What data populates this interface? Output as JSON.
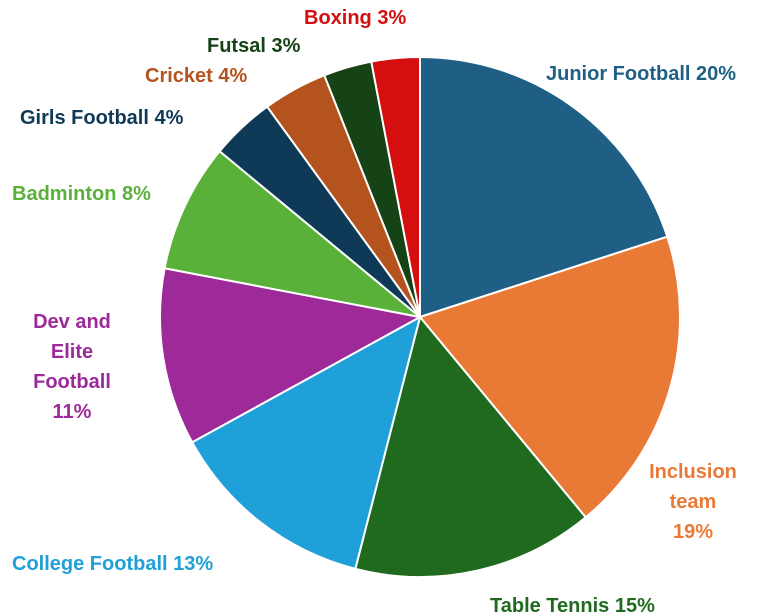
{
  "chart_data": {
    "type": "pie",
    "slices": [
      {
        "label": "Junior Football",
        "value": 20,
        "value_label": "20%",
        "color": "#1f5f86",
        "label_lines": [
          "Junior Football 20%"
        ]
      },
      {
        "label": "Inclusion team",
        "value": 19,
        "value_label": "19%",
        "color": "#e97a35",
        "label_lines": [
          "Inclusion",
          "team",
          "19%"
        ]
      },
      {
        "label": "Table Tennis",
        "value": 15,
        "value_label": "15%",
        "color": "#1f6a1f",
        "label_lines": [
          "Table Tennis 15%"
        ]
      },
      {
        "label": "College Football",
        "value": 13,
        "value_label": "13%",
        "color": "#1fa0d8",
        "label_lines": [
          "College Football 13%"
        ]
      },
      {
        "label": "Dev and Elite Football",
        "value": 11,
        "value_label": "11%",
        "color": "#9e2a99",
        "label_lines": [
          "Dev and",
          "Elite",
          "Football",
          "11%"
        ]
      },
      {
        "label": "Badminton",
        "value": 8,
        "value_label": "8%",
        "color": "#5ab13a",
        "label_lines": [
          "Badminton 8%"
        ]
      },
      {
        "label": "Girls Football",
        "value": 4,
        "value_label": "4%",
        "color": "#0f3a57",
        "label_lines": [
          "Girls Football 4%"
        ]
      },
      {
        "label": "Cricket",
        "value": 4,
        "value_label": "4%",
        "color": "#b5531e",
        "label_lines": [
          "Cricket 4%"
        ]
      },
      {
        "label": "Futsal",
        "value": 3,
        "value_label": "3%",
        "color": "#154315",
        "label_lines": [
          "Futsal  3%"
        ]
      },
      {
        "label": "Boxing",
        "value": 3,
        "value_label": "3%",
        "color": "#d50f0f",
        "label_lines": [
          "Boxing 3%"
        ]
      }
    ],
    "start_angle_deg": 0,
    "direction": "clockwise"
  }
}
